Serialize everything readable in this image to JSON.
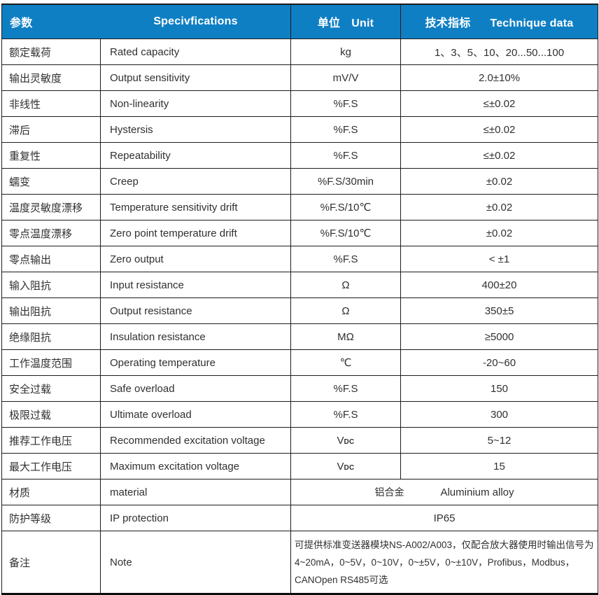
{
  "colors": {
    "header_bg": "#0f7fc4",
    "header_text": "#ffffff",
    "grid_line": "#1c1c1c",
    "body_text": "#303030"
  },
  "header": {
    "param_cn": "参数",
    "spec_en": "Specivfications",
    "unit_cn": "单位",
    "unit_en": "Unit",
    "tech_cn": "技术指标",
    "tech_en": "Technique data"
  },
  "table": {
    "rows": [
      {
        "type": "normal",
        "cn": "额定载荷",
        "en": "Rated capacity",
        "unit": "kg",
        "value": "1、3、5、10、20...50...100"
      },
      {
        "type": "normal",
        "cn": "输出灵敏度",
        "en": "Output sensitivity",
        "unit": "mV/V",
        "value": "2.0±10%"
      },
      {
        "type": "normal",
        "cn": "非线性",
        "en": "Non-linearity",
        "unit": "%F.S",
        "value": "≤±0.02"
      },
      {
        "type": "normal",
        "cn": "滞后",
        "en": "Hystersis",
        "unit": "%F.S",
        "value": "≤±0.02"
      },
      {
        "type": "normal",
        "cn": "重复性",
        "en": "Repeatability",
        "unit": "%F.S",
        "value": "≤±0.02"
      },
      {
        "type": "normal",
        "cn": "蠕变",
        "en": "Creep",
        "unit": "%F.S/30min",
        "value": "±0.02"
      },
      {
        "type": "normal",
        "cn": "温度灵敏度漂移",
        "en": "Temperature sensitivity drift",
        "unit": "%F.S/10℃",
        "value": "±0.02"
      },
      {
        "type": "normal",
        "cn": "零点温度漂移",
        "en": "Zero point temperature drift",
        "unit": "%F.S/10℃",
        "value": "±0.02"
      },
      {
        "type": "normal",
        "cn": "零点输出",
        "en": "Zero output",
        "unit": "%F.S",
        "value": "< ±1"
      },
      {
        "type": "normal",
        "cn": "输入阻抗",
        "en": "Input resistance",
        "unit": "Ω",
        "value": "400±20"
      },
      {
        "type": "normal",
        "cn": "输出阻抗",
        "en": "Output resistance",
        "unit": "Ω",
        "value": "350±5"
      },
      {
        "type": "normal",
        "cn": "绝缘阻抗",
        "en": "Insulation resistance",
        "unit": "MΩ",
        "value": "≥5000"
      },
      {
        "type": "normal",
        "cn": "工作温度范围",
        "en": "Operating temperature",
        "unit": "℃",
        "value": "-20~60"
      },
      {
        "type": "normal",
        "cn": "安全过载",
        "en": "Safe overload",
        "unit": "%F.S",
        "value": "150"
      },
      {
        "type": "normal",
        "cn": "极限过载",
        "en": "Ultimate overload",
        "unit": "%F.S",
        "value": "300"
      },
      {
        "type": "normal",
        "cn": "推荐工作电压",
        "en": "Recommended excitation voltage",
        "unit": "V",
        "unit_sub": "DC",
        "value": "5~12"
      },
      {
        "type": "normal",
        "cn": "最大工作电压",
        "en": "Maximum excitation voltage",
        "unit": "V",
        "unit_sub": "DC",
        "value": "15"
      },
      {
        "type": "pair",
        "cn": "材质",
        "en": "material",
        "value_cn": "铝合金",
        "value_en": "Aluminium alloy"
      },
      {
        "type": "merged",
        "cn": "防护等级",
        "en": "IP protection",
        "value": "IP65"
      },
      {
        "type": "note",
        "cn": "备注",
        "en": "Note",
        "lines": [
          "可提供标准变送器模块NS-A002/A003，仅配合放大器使用时输出信号为",
          "4~20mA，0~5V，0~10V，0~±5V，0~±10V，Profibus，Modbus，",
          "CANOpen  RS485可选"
        ]
      }
    ]
  }
}
